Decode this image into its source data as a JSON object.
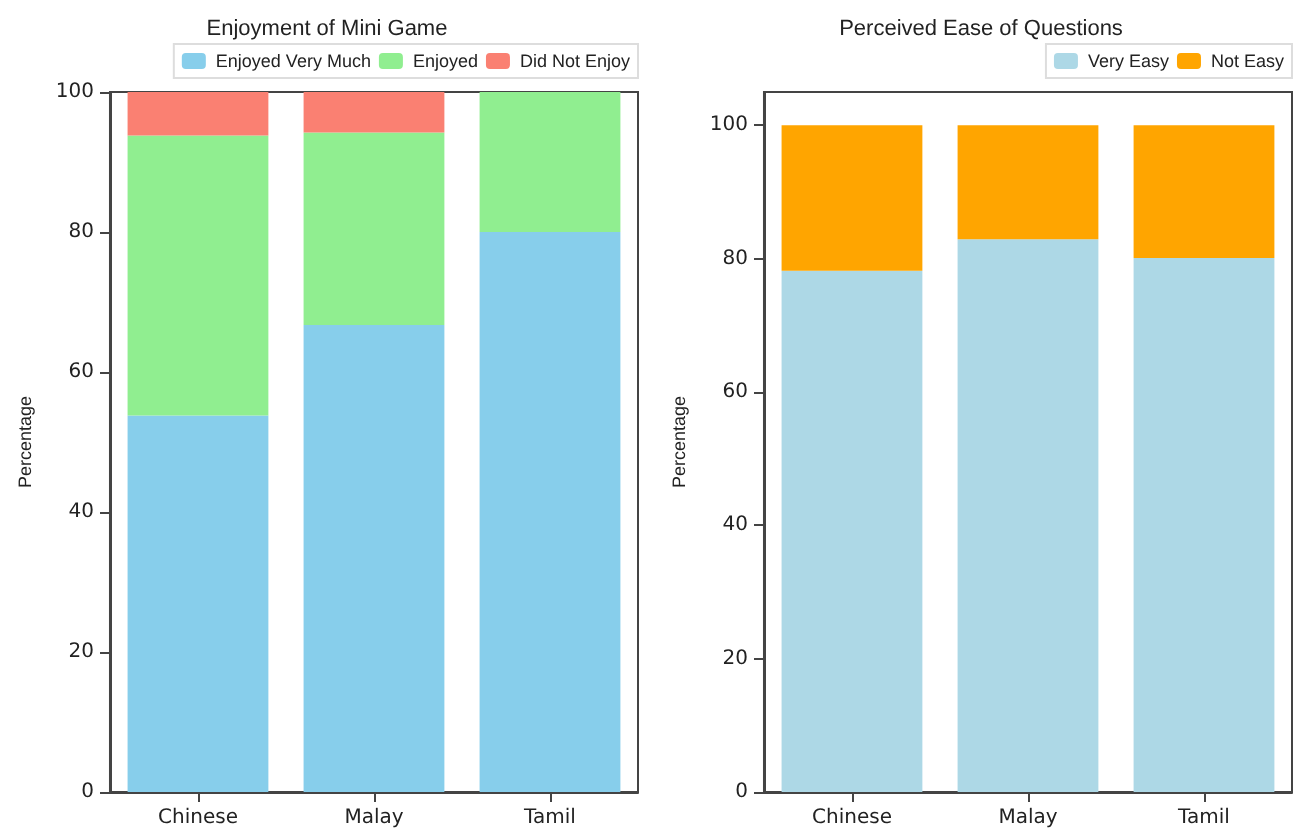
{
  "chart_data": [
    {
      "type": "bar",
      "title": "Enjoyment of Mini Game",
      "ylabel": "Percentage",
      "categories": [
        "Chinese",
        "Malay",
        "Tamil"
      ],
      "stacked": true,
      "series": [
        {
          "name": "Enjoyed Very Much",
          "color": "#87ceeb",
          "values": [
            53.8,
            66.7,
            80
          ]
        },
        {
          "name": "Enjoyed",
          "color": "#90ee90",
          "values": [
            40,
            27.5,
            20
          ]
        },
        {
          "name": "Did Not Enjoy",
          "color": "#fa8072",
          "values": [
            6.2,
            5.8,
            0
          ]
        }
      ],
      "ylim": [
        0,
        100
      ],
      "yticks": [
        0,
        20,
        40,
        60,
        80,
        100
      ],
      "grid": false,
      "legend": "top right"
    },
    {
      "type": "bar",
      "title": "Perceived Ease of Questions",
      "ylabel": "Percentage",
      "categories": [
        "Chinese",
        "Malay",
        "Tamil"
      ],
      "stacked": true,
      "series": [
        {
          "name": "Very Easy",
          "color": "#add8e6",
          "values": [
            78.2,
            82.9,
            80.1
          ]
        },
        {
          "name": "Not Easy",
          "color": "#ffa500",
          "values": [
            21.8,
            17.1,
            19.9
          ]
        }
      ],
      "ylim": [
        0,
        105
      ],
      "yticks": [
        0,
        20,
        40,
        60,
        80,
        100
      ],
      "grid": false,
      "legend": "top right"
    }
  ]
}
